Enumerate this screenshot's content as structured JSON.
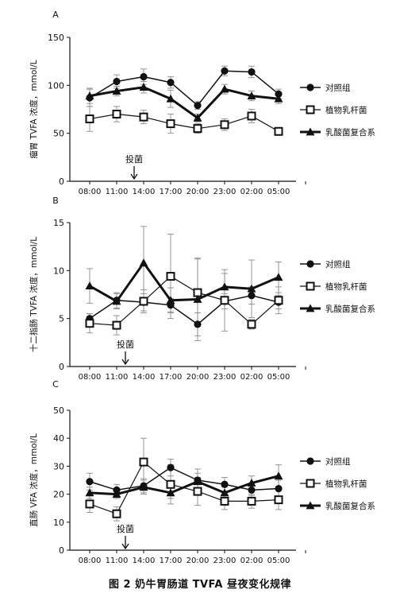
{
  "figure": {
    "caption": "图 2 奶牛胃肠道 TVFA 昼夜变化规律"
  },
  "colors": {
    "ink": "#111111",
    "control": "#111111",
    "plantaris": "#111111",
    "complex": "#111111",
    "error": "#8a8a8a"
  },
  "chart_data": [
    {
      "type": "line",
      "panel_label": "A",
      "ylabel": "瘤胃 TVFA 浓度，mmol/L",
      "categories": [
        "08:00",
        "11:00",
        "14:00",
        "17:00",
        "20:00",
        "23:00",
        "02:00",
        "05:00"
      ],
      "ylim": [
        0,
        150
      ],
      "yticks": [
        0,
        50,
        100,
        150
      ],
      "annotation": {
        "text": "投菌",
        "at_category": "11:00"
      },
      "legend": "right",
      "series": [
        {
          "name": "对照组",
          "marker": "circle",
          "values": [
            87,
            104,
            109,
            103,
            79,
            115,
            114,
            91
          ],
          "err": [
            9,
            7,
            8,
            6,
            4,
            5,
            6,
            5
          ]
        },
        {
          "name": "植物乳杆菌",
          "marker": "square",
          "values": [
            65,
            70,
            67,
            60,
            55,
            59,
            68,
            52
          ],
          "err": [
            13,
            8,
            7,
            10,
            5,
            6,
            7,
            3
          ]
        },
        {
          "name": "乳酸菌复合系",
          "marker": "triangle",
          "values": [
            89,
            94,
            98,
            86,
            66,
            96,
            89,
            86
          ],
          "err": [
            8,
            5,
            6,
            9,
            4,
            5,
            5,
            5
          ]
        }
      ]
    },
    {
      "type": "line",
      "panel_label": "B",
      "ylabel": "十二指肠 TVFA 浓度，mmol/L",
      "categories": [
        "08:00",
        "11:00",
        "14:00",
        "17:00",
        "20:00",
        "23:00",
        "02:00",
        "05:00"
      ],
      "ylim": [
        0,
        15
      ],
      "yticks": [
        0,
        5,
        10,
        15
      ],
      "annotation": {
        "text": "投菌",
        "at_category": "11:00"
      },
      "legend": "right",
      "series": [
        {
          "name": "对照组",
          "marker": "circle",
          "values": [
            5.0,
            6.9,
            6.7,
            6.4,
            4.4,
            6.8,
            7.4,
            6.7
          ],
          "err": [
            0.5,
            0.8,
            0.9,
            0.7,
            1.2,
            0.8,
            0.9,
            0.7
          ]
        },
        {
          "name": "植物乳杆菌",
          "marker": "square",
          "values": [
            4.5,
            4.3,
            6.8,
            9.4,
            7.7,
            6.9,
            4.4,
            6.9
          ],
          "err": [
            1.0,
            1.0,
            1.2,
            4.4,
            3.5,
            3.2,
            0.5,
            1.4
          ]
        },
        {
          "name": "乳酸菌复合系",
          "marker": "triangle",
          "values": [
            8.4,
            6.8,
            10.8,
            6.9,
            7.0,
            8.3,
            8.1,
            9.3
          ],
          "err": [
            1.8,
            0.8,
            3.8,
            1.3,
            4.3,
            1.4,
            3.0,
            1.6
          ]
        }
      ]
    },
    {
      "type": "line",
      "panel_label": "C",
      "ylabel": "直肠 VFA 浓度，mmol/L",
      "categories": [
        "08:00",
        "11:00",
        "14:00",
        "17:00",
        "20:00",
        "23:00",
        "02:00",
        "05:00"
      ],
      "ylim": [
        0,
        50
      ],
      "yticks": [
        0,
        10,
        20,
        30,
        40,
        50
      ],
      "annotation": {
        "text": "投菌",
        "at_category": "11:00"
      },
      "legend": "right",
      "series": [
        {
          "name": "对照组",
          "marker": "circle",
          "values": [
            24.5,
            21.5,
            23.0,
            29.5,
            25.0,
            23.5,
            21.5,
            22.0
          ],
          "err": [
            3.0,
            2.0,
            2.5,
            3.0,
            4.0,
            2.5,
            2.0,
            3.0
          ]
        },
        {
          "name": "植物乳杆菌",
          "marker": "square",
          "values": [
            16.5,
            13.0,
            31.5,
            23.5,
            21.0,
            17.5,
            17.5,
            18.0
          ],
          "err": [
            3.0,
            2.5,
            8.5,
            7.0,
            5.0,
            3.0,
            2.5,
            3.5
          ]
        },
        {
          "name": "乳酸菌复合系",
          "marker": "triangle",
          "values": [
            20.5,
            20.0,
            22.5,
            20.5,
            24.5,
            20.5,
            24.0,
            26.5
          ],
          "err": [
            2.0,
            1.5,
            2.5,
            2.0,
            3.0,
            2.0,
            2.5,
            4.0
          ]
        }
      ]
    }
  ]
}
